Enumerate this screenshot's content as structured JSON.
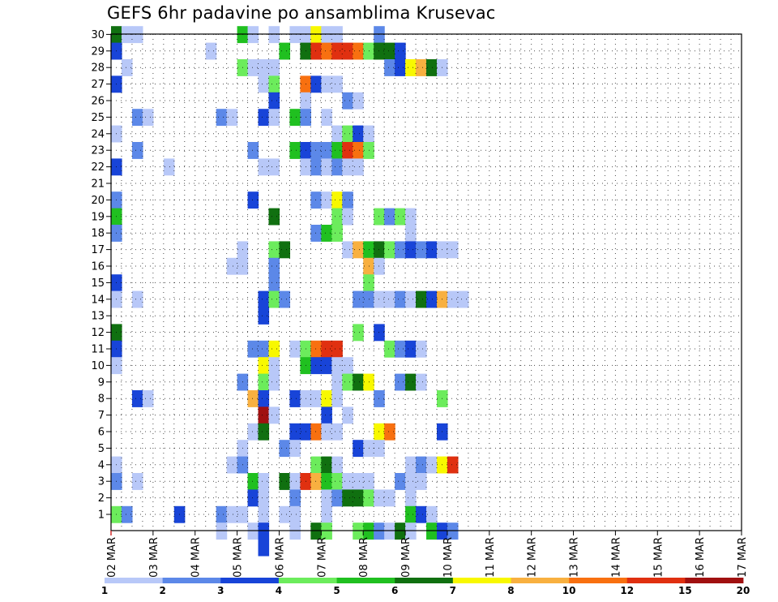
{
  "title": "GEFS 6hr padavine po ansamblima Krusevac",
  "chart_data": {
    "type": "heatmap",
    "title": "GEFS 6hr padavine po ansamblima Krusevac",
    "y_tick_labels": [
      "1",
      "2",
      "3",
      "4",
      "5",
      "6",
      "7",
      "8",
      "9",
      "10",
      "11",
      "12",
      "13",
      "14",
      "15",
      "16",
      "17",
      "18",
      "19",
      "20",
      "21",
      "22",
      "23",
      "24",
      "25",
      "26",
      "27",
      "28",
      "29",
      "30"
    ],
    "x_tick_labels": [
      "02 MAR",
      "03 MAR",
      "04 MAR",
      "05 MAR",
      "06 MAR",
      "07 MAR",
      "08 MAR",
      "09 MAR",
      "10 MAR",
      "11 MAR",
      "12 MAR",
      "13 MAR",
      "14 MAR",
      "15 MAR",
      "16 MAR",
      "17 MAR"
    ],
    "steps_per_day": 4,
    "grid": true,
    "legend": {
      "placement": "bottom",
      "colors": [
        "#b8c8f8",
        "#5c88e8",
        "#1844d8",
        "#6cec5c",
        "#20c020",
        "#107010",
        "#f8f800",
        "#f8b040",
        "#f87010",
        "#e03010",
        "#a01010"
      ],
      "labels": [
        "1",
        "2",
        "3",
        "4",
        "5",
        "6",
        "7",
        "8",
        "10",
        "12",
        "15",
        "20"
      ]
    },
    "cells": [
      [
        30,
        0,
        5
      ],
      [
        30,
        1,
        0
      ],
      [
        30,
        2,
        0
      ],
      [
        30,
        12,
        4
      ],
      [
        30,
        13,
        0
      ],
      [
        30,
        15,
        0
      ],
      [
        30,
        17,
        0
      ],
      [
        30,
        18,
        0
      ],
      [
        30,
        19,
        6
      ],
      [
        30,
        20,
        0
      ],
      [
        30,
        21,
        0
      ],
      [
        30,
        25,
        1
      ],
      [
        29,
        0,
        2
      ],
      [
        29,
        9,
        0
      ],
      [
        29,
        16,
        4
      ],
      [
        29,
        18,
        5
      ],
      [
        29,
        19,
        9
      ],
      [
        29,
        20,
        8
      ],
      [
        29,
        21,
        9
      ],
      [
        29,
        22,
        9
      ],
      [
        29,
        23,
        8
      ],
      [
        29,
        24,
        3
      ],
      [
        29,
        25,
        5
      ],
      [
        29,
        26,
        5
      ],
      [
        29,
        27,
        2
      ],
      [
        28,
        1,
        0
      ],
      [
        28,
        12,
        3
      ],
      [
        28,
        13,
        0
      ],
      [
        28,
        14,
        0
      ],
      [
        28,
        15,
        0
      ],
      [
        28,
        26,
        1
      ],
      [
        28,
        27,
        2
      ],
      [
        28,
        28,
        6
      ],
      [
        28,
        29,
        7
      ],
      [
        28,
        30,
        5
      ],
      [
        28,
        31,
        0
      ],
      [
        27,
        0,
        2
      ],
      [
        27,
        14,
        0
      ],
      [
        27,
        15,
        3
      ],
      [
        27,
        18,
        8
      ],
      [
        27,
        19,
        2
      ],
      [
        27,
        20,
        0
      ],
      [
        27,
        21,
        0
      ],
      [
        26,
        15,
        2
      ],
      [
        26,
        18,
        0
      ],
      [
        26,
        22,
        1
      ],
      [
        26,
        23,
        0
      ],
      [
        25,
        2,
        1
      ],
      [
        25,
        3,
        0
      ],
      [
        25,
        10,
        1
      ],
      [
        25,
        11,
        0
      ],
      [
        25,
        14,
        2
      ],
      [
        25,
        15,
        0
      ],
      [
        25,
        17,
        4
      ],
      [
        25,
        18,
        1
      ],
      [
        25,
        20,
        0
      ],
      [
        24,
        0,
        0
      ],
      [
        24,
        21,
        0
      ],
      [
        24,
        22,
        3
      ],
      [
        24,
        23,
        2
      ],
      [
        24,
        24,
        0
      ],
      [
        23,
        2,
        1
      ],
      [
        23,
        13,
        1
      ],
      [
        23,
        17,
        4
      ],
      [
        23,
        18,
        2
      ],
      [
        23,
        19,
        1
      ],
      [
        23,
        20,
        1
      ],
      [
        23,
        21,
        4
      ],
      [
        23,
        22,
        9
      ],
      [
        23,
        23,
        8
      ],
      [
        23,
        24,
        3
      ],
      [
        22,
        0,
        2
      ],
      [
        22,
        5,
        0
      ],
      [
        22,
        14,
        0
      ],
      [
        22,
        15,
        0
      ],
      [
        22,
        18,
        0
      ],
      [
        22,
        19,
        1
      ],
      [
        22,
        20,
        0
      ],
      [
        22,
        21,
        1
      ],
      [
        22,
        22,
        0
      ],
      [
        22,
        23,
        0
      ],
      [
        20,
        0,
        1
      ],
      [
        20,
        13,
        2
      ],
      [
        20,
        19,
        1
      ],
      [
        20,
        20,
        0
      ],
      [
        20,
        21,
        6
      ],
      [
        20,
        22,
        1
      ],
      [
        19,
        0,
        4
      ],
      [
        19,
        15,
        5
      ],
      [
        19,
        21,
        3
      ],
      [
        19,
        22,
        0
      ],
      [
        19,
        25,
        3
      ],
      [
        19,
        26,
        1
      ],
      [
        19,
        27,
        3
      ],
      [
        19,
        28,
        0
      ],
      [
        18,
        0,
        1
      ],
      [
        18,
        19,
        1
      ],
      [
        18,
        20,
        4
      ],
      [
        18,
        21,
        3
      ],
      [
        18,
        28,
        0
      ],
      [
        17,
        12,
        0
      ],
      [
        17,
        15,
        3
      ],
      [
        17,
        16,
        5
      ],
      [
        17,
        22,
        0
      ],
      [
        17,
        23,
        7
      ],
      [
        17,
        24,
        4
      ],
      [
        17,
        25,
        5
      ],
      [
        17,
        26,
        3
      ],
      [
        17,
        27,
        1
      ],
      [
        17,
        28,
        2
      ],
      [
        17,
        29,
        1
      ],
      [
        17,
        30,
        2
      ],
      [
        17,
        31,
        0
      ],
      [
        17,
        32,
        0
      ],
      [
        16,
        11,
        0
      ],
      [
        16,
        12,
        0
      ],
      [
        16,
        15,
        1
      ],
      [
        16,
        24,
        7
      ],
      [
        16,
        25,
        0
      ],
      [
        15,
        0,
        2
      ],
      [
        15,
        15,
        1
      ],
      [
        15,
        24,
        3
      ],
      [
        14,
        0,
        0
      ],
      [
        14,
        2,
        0
      ],
      [
        14,
        14,
        2
      ],
      [
        14,
        15,
        3
      ],
      [
        14,
        16,
        1
      ],
      [
        14,
        23,
        1
      ],
      [
        14,
        24,
        1
      ],
      [
        14,
        25,
        0
      ],
      [
        14,
        26,
        0
      ],
      [
        14,
        27,
        1
      ],
      [
        14,
        28,
        0
      ],
      [
        14,
        29,
        5
      ],
      [
        14,
        30,
        2
      ],
      [
        14,
        31,
        7
      ],
      [
        14,
        32,
        0
      ],
      [
        14,
        33,
        0
      ],
      [
        13,
        14,
        2
      ],
      [
        12,
        0,
        5
      ],
      [
        12,
        23,
        3
      ],
      [
        12,
        25,
        2
      ],
      [
        11,
        0,
        2
      ],
      [
        11,
        13,
        1
      ],
      [
        11,
        14,
        1
      ],
      [
        11,
        15,
        6
      ],
      [
        11,
        17,
        0
      ],
      [
        11,
        18,
        3
      ],
      [
        11,
        19,
        8
      ],
      [
        11,
        20,
        9
      ],
      [
        11,
        21,
        9
      ],
      [
        11,
        26,
        3
      ],
      [
        11,
        27,
        1
      ],
      [
        11,
        28,
        2
      ],
      [
        11,
        29,
        0
      ],
      [
        10,
        0,
        0
      ],
      [
        10,
        14,
        6
      ],
      [
        10,
        15,
        0
      ],
      [
        10,
        18,
        4
      ],
      [
        10,
        19,
        2
      ],
      [
        10,
        20,
        2
      ],
      [
        10,
        21,
        0
      ],
      [
        10,
        22,
        0
      ],
      [
        9,
        12,
        1
      ],
      [
        9,
        14,
        3
      ],
      [
        9,
        15,
        0
      ],
      [
        9,
        21,
        0
      ],
      [
        9,
        22,
        3
      ],
      [
        9,
        23,
        5
      ],
      [
        9,
        24,
        6
      ],
      [
        9,
        27,
        1
      ],
      [
        9,
        28,
        5
      ],
      [
        9,
        29,
        0
      ],
      [
        8,
        2,
        2
      ],
      [
        8,
        3,
        0
      ],
      [
        8,
        13,
        7
      ],
      [
        8,
        14,
        2
      ],
      [
        8,
        17,
        2
      ],
      [
        8,
        18,
        0
      ],
      [
        8,
        19,
        0
      ],
      [
        8,
        20,
        6
      ],
      [
        8,
        21,
        0
      ],
      [
        8,
        25,
        1
      ],
      [
        8,
        31,
        3
      ],
      [
        7,
        14,
        10
      ],
      [
        7,
        15,
        0
      ],
      [
        7,
        20,
        2
      ],
      [
        7,
        22,
        0
      ],
      [
        6,
        13,
        0
      ],
      [
        6,
        14,
        5
      ],
      [
        6,
        17,
        2
      ],
      [
        6,
        18,
        2
      ],
      [
        6,
        19,
        8
      ],
      [
        6,
        20,
        0
      ],
      [
        6,
        21,
        0
      ],
      [
        6,
        25,
        6
      ],
      [
        6,
        26,
        8
      ],
      [
        6,
        31,
        2
      ],
      [
        5,
        12,
        0
      ],
      [
        5,
        16,
        1
      ],
      [
        5,
        17,
        0
      ],
      [
        5,
        23,
        2
      ],
      [
        5,
        24,
        0
      ],
      [
        5,
        25,
        0
      ],
      [
        4,
        0,
        0
      ],
      [
        4,
        11,
        0
      ],
      [
        4,
        12,
        1
      ],
      [
        4,
        19,
        3
      ],
      [
        4,
        20,
        5
      ],
      [
        4,
        21,
        0
      ],
      [
        4,
        28,
        0
      ],
      [
        4,
        29,
        1
      ],
      [
        4,
        30,
        0
      ],
      [
        4,
        31,
        6
      ],
      [
        4,
        32,
        9
      ],
      [
        3,
        0,
        1
      ],
      [
        3,
        2,
        0
      ],
      [
        3,
        13,
        4
      ],
      [
        3,
        14,
        0
      ],
      [
        3,
        16,
        5
      ],
      [
        3,
        17,
        0
      ],
      [
        3,
        18,
        9
      ],
      [
        3,
        19,
        7
      ],
      [
        3,
        20,
        4
      ],
      [
        3,
        21,
        3
      ],
      [
        3,
        22,
        0
      ],
      [
        3,
        23,
        0
      ],
      [
        3,
        24,
        0
      ],
      [
        3,
        27,
        1
      ],
      [
        3,
        28,
        0
      ],
      [
        3,
        29,
        0
      ],
      [
        2,
        13,
        2
      ],
      [
        2,
        14,
        0
      ],
      [
        2,
        17,
        1
      ],
      [
        2,
        20,
        0
      ],
      [
        2,
        21,
        1
      ],
      [
        2,
        22,
        5
      ],
      [
        2,
        23,
        5
      ],
      [
        2,
        24,
        3
      ],
      [
        2,
        25,
        0
      ],
      [
        2,
        26,
        0
      ],
      [
        2,
        28,
        0
      ],
      [
        1,
        0,
        3
      ],
      [
        1,
        1,
        1
      ],
      [
        1,
        6,
        2
      ],
      [
        1,
        10,
        1
      ],
      [
        1,
        11,
        0
      ],
      [
        1,
        12,
        0
      ],
      [
        1,
        14,
        0
      ],
      [
        1,
        16,
        0
      ],
      [
        1,
        17,
        0
      ],
      [
        1,
        20,
        0
      ],
      [
        1,
        28,
        4
      ],
      [
        1,
        29,
        2
      ],
      [
        1,
        30,
        0
      ],
      [
        0,
        10,
        0
      ],
      [
        0,
        13,
        0
      ],
      [
        0,
        14,
        2
      ],
      [
        0,
        17,
        0
      ],
      [
        0,
        19,
        5
      ],
      [
        0,
        20,
        3
      ],
      [
        0,
        23,
        3
      ],
      [
        0,
        24,
        4
      ],
      [
        0,
        25,
        1
      ],
      [
        0,
        26,
        0
      ],
      [
        0,
        27,
        5
      ],
      [
        0,
        28,
        0
      ],
      [
        0,
        30,
        4
      ],
      [
        0,
        31,
        2
      ],
      [
        0,
        32,
        1
      ],
      [
        -1,
        14,
        2
      ]
    ]
  }
}
